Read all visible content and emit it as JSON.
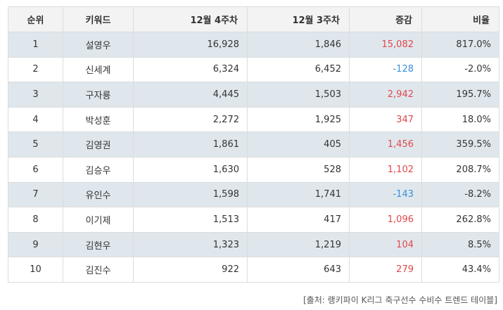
{
  "table": {
    "headers": {
      "rank": "순위",
      "keyword": "키워드",
      "week4": "12월 4주차",
      "week3": "12월 3주차",
      "change": "증감",
      "ratio": "비율"
    },
    "rows": [
      {
        "rank": "1",
        "keyword": "설영우",
        "week4": "16,928",
        "week3": "1,846",
        "change": "15,082",
        "ratio": "817.0%"
      },
      {
        "rank": "2",
        "keyword": "신세계",
        "week4": "6,324",
        "week3": "6,452",
        "change": "-128",
        "ratio": "-2.0%"
      },
      {
        "rank": "3",
        "keyword": "구자룡",
        "week4": "4,445",
        "week3": "1,503",
        "change": "2,942",
        "ratio": "195.7%"
      },
      {
        "rank": "4",
        "keyword": "박성훈",
        "week4": "2,272",
        "week3": "1,925",
        "change": "347",
        "ratio": "18.0%"
      },
      {
        "rank": "5",
        "keyword": "김영권",
        "week4": "1,861",
        "week3": "405",
        "change": "1,456",
        "ratio": "359.5%"
      },
      {
        "rank": "6",
        "keyword": "김승우",
        "week4": "1,630",
        "week3": "528",
        "change": "1,102",
        "ratio": "208.7%"
      },
      {
        "rank": "7",
        "keyword": "유인수",
        "week4": "1,598",
        "week3": "1,741",
        "change": "-143",
        "ratio": "-8.2%"
      },
      {
        "rank": "8",
        "keyword": "이기제",
        "week4": "1,513",
        "week3": "417",
        "change": "1,096",
        "ratio": "262.8%"
      },
      {
        "rank": "9",
        "keyword": "김현우",
        "week4": "1,323",
        "week3": "1,219",
        "change": "104",
        "ratio": "8.5%"
      },
      {
        "rank": "10",
        "keyword": "김진수",
        "week4": "922",
        "week3": "643",
        "change": "279",
        "ratio": "43.4%"
      }
    ]
  },
  "source": "[출처: 랭키파이 K리그 축구선수 수비수 트렌드 테이블]",
  "colors": {
    "positive": "#e0484b",
    "negative": "#3a90d9",
    "stripe": "#dfe7ed",
    "header_bg": "#f3f3f3"
  }
}
